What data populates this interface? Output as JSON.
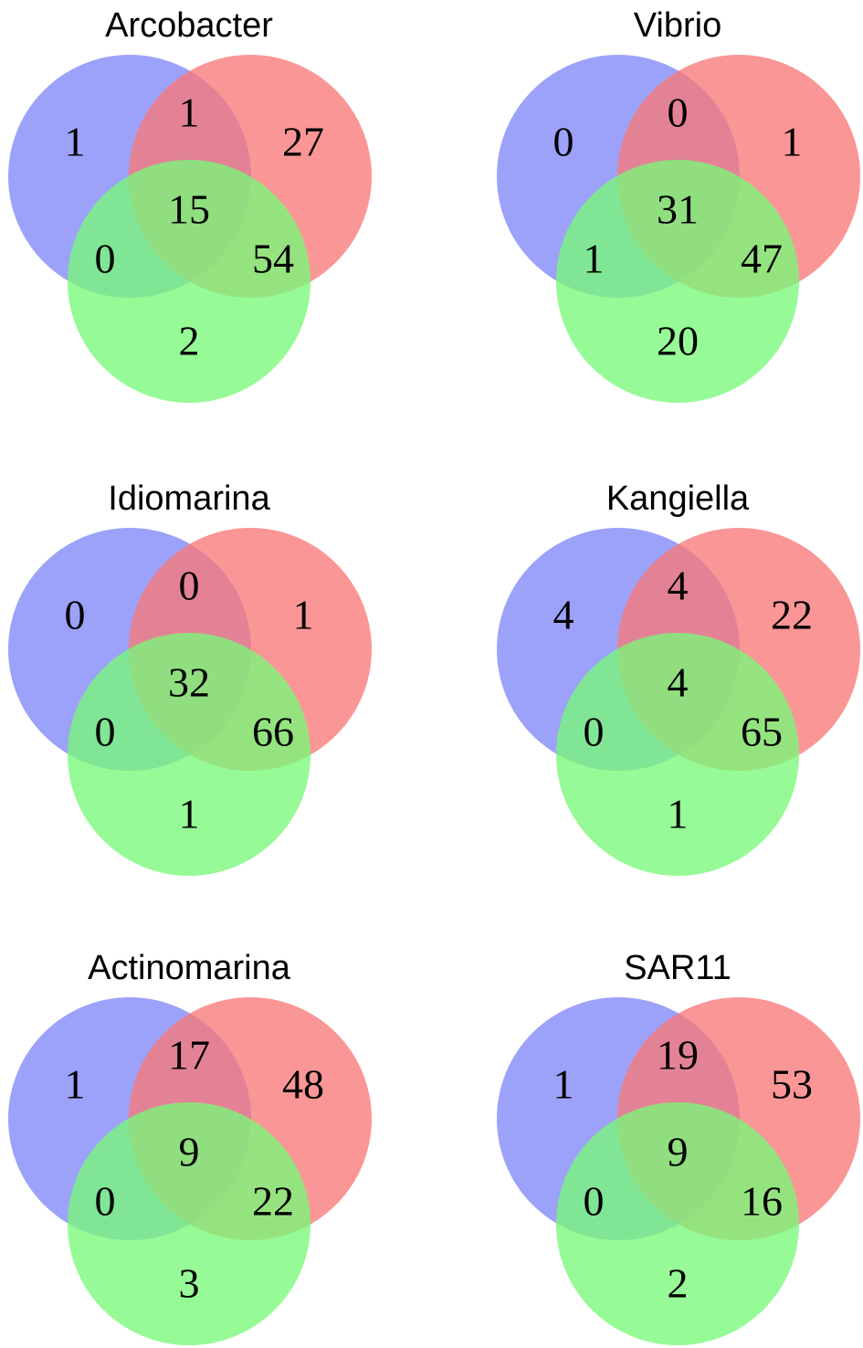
{
  "colors": {
    "blue": "#8088f8",
    "red": "#f87878",
    "green": "#78f878"
  },
  "diagrams": [
    {
      "title": "Arcobacter",
      "regions": {
        "blue_only": "1",
        "red_only": "27",
        "blue_red": "1",
        "center": "15",
        "blue_green": "0",
        "red_green": "54",
        "green_only": "2"
      }
    },
    {
      "title": "Vibrio",
      "regions": {
        "blue_only": "0",
        "red_only": "1",
        "blue_red": "0",
        "center": "31",
        "blue_green": "1",
        "red_green": "47",
        "green_only": "20"
      }
    },
    {
      "title": "Idiomarina",
      "regions": {
        "blue_only": "0",
        "red_only": "1",
        "blue_red": "0",
        "center": "32",
        "blue_green": "0",
        "red_green": "66",
        "green_only": "1"
      }
    },
    {
      "title": "Kangiella",
      "regions": {
        "blue_only": "4",
        "red_only": "22",
        "blue_red": "4",
        "center": "4",
        "blue_green": "0",
        "red_green": "65",
        "green_only": "1"
      }
    },
    {
      "title": "Actinomarina",
      "regions": {
        "blue_only": "1",
        "red_only": "48",
        "blue_red": "17",
        "center": "9",
        "blue_green": "0",
        "red_green": "22",
        "green_only": "3"
      }
    },
    {
      "title": "SAR11",
      "regions": {
        "blue_only": "1",
        "red_only": "53",
        "blue_red": "19",
        "center": "9",
        "blue_green": "0",
        "red_green": "16",
        "green_only": "2"
      }
    }
  ]
}
